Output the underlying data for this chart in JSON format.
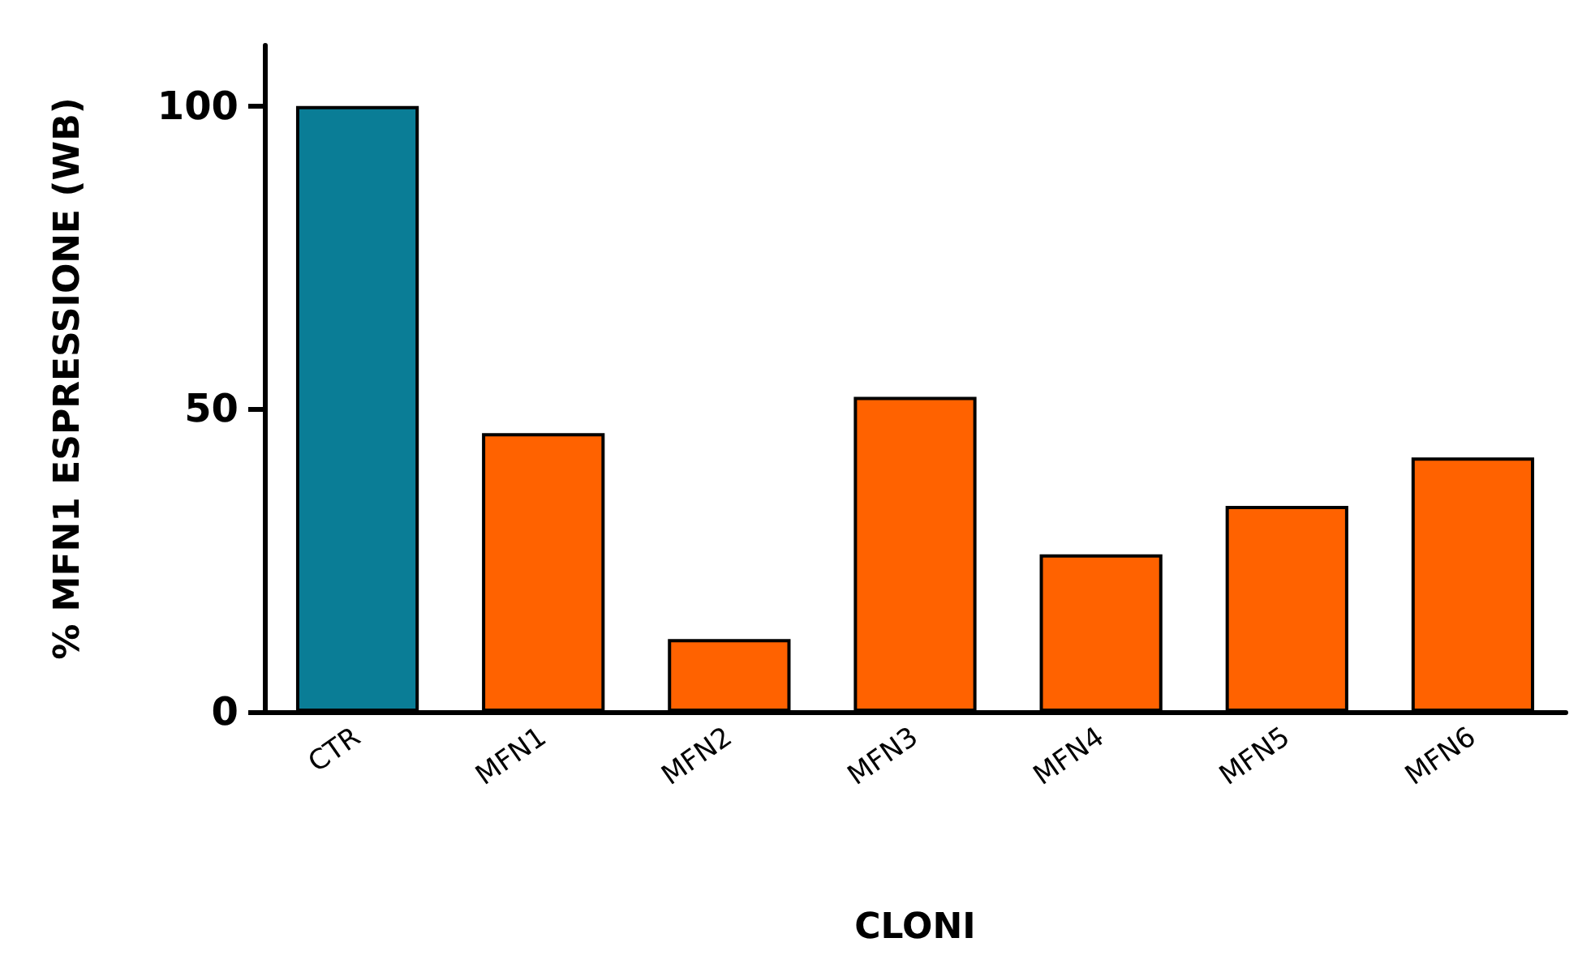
{
  "chart_data": {
    "type": "bar",
    "xlabel": "CLONI",
    "ylabel": "% MFN1 ESPRESSIONE (WB)",
    "categories": [
      "CTR",
      "MFN1",
      "MFN2",
      "MFN3",
      "MFN4",
      "MFN5",
      "MFN6"
    ],
    "values": [
      100,
      46,
      12,
      52,
      26,
      34,
      42
    ],
    "colors": [
      "#0a7d96",
      "#ff6200",
      "#ff6200",
      "#ff6200",
      "#ff6200",
      "#ff6200",
      "#ff6200"
    ],
    "ylim": [
      0,
      110
    ],
    "yticks": [
      0,
      50,
      100
    ],
    "grid": false
  }
}
